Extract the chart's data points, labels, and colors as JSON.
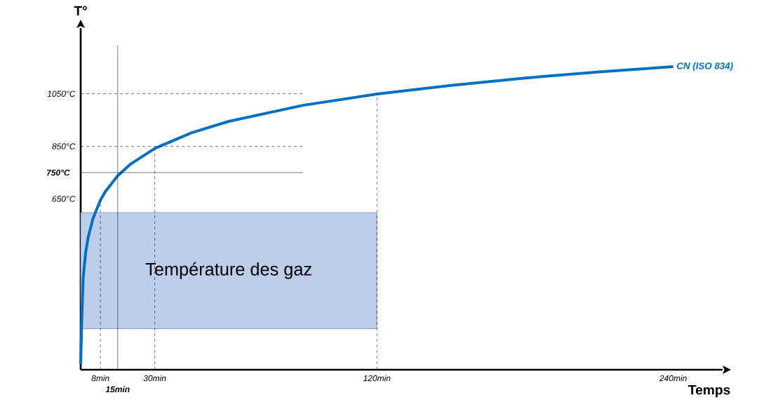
{
  "chart_data": {
    "type": "line",
    "xlabel": "Temps",
    "ylabel": "T°",
    "xlim": [
      0,
      260
    ],
    "ylim": [
      0,
      1300
    ],
    "xticks": [
      {
        "value": 8,
        "label": "8min"
      },
      {
        "value": 30,
        "label": "30min"
      },
      {
        "value": 120,
        "label": "120min"
      },
      {
        "value": 240,
        "label": "240min"
      }
    ],
    "yticks": [
      {
        "value": 650,
        "label": "650°C"
      },
      {
        "value": 850,
        "label": "850°C"
      },
      {
        "value": 1050,
        "label": "1050°C"
      }
    ],
    "series": [
      {
        "name": "CN (ISO 834)",
        "color": "#0070c0",
        "x": [
          0,
          0.5,
          1,
          2,
          3,
          5,
          8,
          10,
          15,
          20,
          30,
          45,
          60,
          90,
          120,
          150,
          180,
          210,
          240
        ],
        "values": [
          20,
          209,
          349,
          445,
          502,
          576,
          645,
          678,
          738,
          781,
          842,
          902,
          945,
          1006,
          1049,
          1082,
          1110,
          1133,
          1153
        ]
      }
    ],
    "ref_lines": [
      {
        "axis": "x",
        "value": 8,
        "line_style": "dashed"
      },
      {
        "axis": "x",
        "value": 30,
        "line_style": "dashed"
      },
      {
        "axis": "x",
        "value": 120,
        "line_style": "dashed"
      },
      {
        "axis": "y",
        "value": 850,
        "line_style": "dashed"
      },
      {
        "axis": "y",
        "value": 1050,
        "line_style": "dashed"
      },
      {
        "axis": "y",
        "value": 750,
        "label": "750°C",
        "line_style": "solid"
      },
      {
        "axis": "x",
        "value": 15,
        "label": "15min",
        "line_style": "solid"
      }
    ],
    "bands": [
      {
        "axis": "x",
        "from": 0,
        "to": 120,
        "label": "Température des gaz",
        "color": "#becdeb"
      }
    ],
    "marker": "none",
    "line_style": "solid",
    "grid": false
  }
}
